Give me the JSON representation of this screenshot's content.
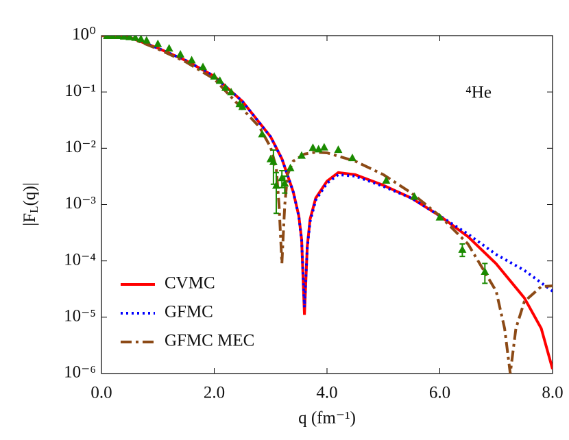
{
  "chart_data": {
    "type": "line",
    "ylog": true,
    "legend": "lower left",
    "annotation": "⁴He",
    "xlabel": "q (fm⁻¹)",
    "ylabel": [
      "|F",
      "L",
      "(q)|"
    ],
    "xlim": [
      0,
      8
    ],
    "ylim": [
      1e-06,
      1
    ],
    "xticks": [
      {
        "value": 0,
        "label": "0.0"
      },
      {
        "value": 2,
        "label": "2.0"
      },
      {
        "value": 4,
        "label": "4.0"
      },
      {
        "value": 6,
        "label": "6.0"
      },
      {
        "value": 8,
        "label": "8.0"
      }
    ],
    "yticks": [
      {
        "value": 1,
        "label": "10⁰"
      },
      {
        "value": 0.1,
        "label": "10⁻¹"
      },
      {
        "value": 0.01,
        "label": "10⁻²"
      },
      {
        "value": 0.001,
        "label": "10⁻³"
      },
      {
        "value": 0.0001,
        "label": "10⁻⁴"
      },
      {
        "value": 1e-05,
        "label": "10⁻⁵"
      },
      {
        "value": 1e-06,
        "label": "10⁻⁶"
      }
    ],
    "series": [
      {
        "name": "CVMC",
        "color": "#ff0000",
        "style": "solid",
        "x": [
          0,
          0.5,
          1.0,
          1.5,
          2.0,
          2.5,
          3.0,
          3.2,
          3.4,
          3.5,
          3.55,
          3.6,
          3.65,
          3.7,
          3.8,
          4.0,
          4.2,
          4.5,
          5.0,
          5.5,
          6.0,
          6.5,
          7.0,
          7.5,
          7.8,
          8.0
        ],
        "values": [
          1,
          0.93,
          0.6,
          0.36,
          0.19,
          0.068,
          0.016,
          0.0065,
          0.0017,
          0.00063,
          0.00024,
          1.1e-05,
          0.00018,
          0.00055,
          0.0013,
          0.0026,
          0.0037,
          0.0034,
          0.0022,
          0.0013,
          0.00063,
          0.00027,
          8.9e-05,
          2.2e-05,
          6.3e-06,
          1.2e-06
        ]
      },
      {
        "name": "GFMC",
        "color": "#0000ff",
        "style": "dotted",
        "x": [
          0,
          0.5,
          1.0,
          1.5,
          2.0,
          2.5,
          3.0,
          3.2,
          3.4,
          3.5,
          3.55,
          3.6,
          3.65,
          3.7,
          3.8,
          4.0,
          4.2,
          4.5,
          5.0,
          5.5,
          6.0,
          6.5,
          7.0,
          7.5,
          8.0
        ],
        "values": [
          1,
          0.93,
          0.6,
          0.36,
          0.19,
          0.068,
          0.016,
          0.0065,
          0.0017,
          0.00062,
          0.00023,
          1.5e-05,
          0.00017,
          0.0005,
          0.0012,
          0.0024,
          0.0034,
          0.0032,
          0.0021,
          0.0013,
          0.00063,
          0.0003,
          0.00013,
          6.8e-05,
          2.9e-05
        ]
      },
      {
        "name": "GFMC MEC",
        "color": "#8c4a16",
        "style": "dashdot",
        "x": [
          0,
          0.5,
          1.0,
          1.5,
          2.0,
          2.5,
          2.8,
          3.0,
          3.1,
          3.15,
          3.2,
          3.25,
          3.3,
          3.4,
          3.6,
          3.8,
          4.0,
          4.5,
          5.0,
          5.5,
          6.0,
          6.5,
          7.0,
          7.15,
          7.25,
          7.35,
          7.5,
          7.8,
          8.0
        ],
        "values": [
          1,
          0.92,
          0.58,
          0.34,
          0.17,
          0.05,
          0.024,
          0.0104,
          0.0045,
          0.00096,
          9e-05,
          0.00096,
          0.0034,
          0.0059,
          0.0079,
          0.0085,
          0.0083,
          0.0059,
          0.0034,
          0.0016,
          0.00063,
          0.0002,
          2.9e-05,
          6.3e-06,
          1e-06,
          6.3e-06,
          1.9e-05,
          3.5e-05,
          3.6e-05
        ]
      }
    ],
    "points": {
      "color": "#1a8a00",
      "x": [
        0.1,
        0.2,
        0.3,
        0.4,
        0.5,
        0.6,
        0.7,
        0.8,
        1.0,
        1.2,
        1.4,
        1.6,
        1.8,
        2.0,
        2.1,
        2.2,
        2.3,
        2.45,
        2.5,
        2.85,
        3.0,
        3.05,
        3.1,
        3.2,
        3.25,
        3.35,
        3.55,
        3.75,
        3.85,
        3.95,
        4.2,
        4.45,
        5.05,
        5.55,
        6.0,
        6.4,
        6.8
      ],
      "values": [
        1.0,
        1.0,
        1.0,
        0.98,
        0.96,
        0.93,
        0.88,
        0.83,
        0.72,
        0.6,
        0.47,
        0.37,
        0.28,
        0.19,
        0.16,
        0.12,
        0.1,
        0.062,
        0.055,
        0.018,
        0.0065,
        0.0058,
        0.0022,
        0.003,
        0.0024,
        0.0045,
        0.0075,
        0.0103,
        0.0097,
        0.0105,
        0.0095,
        0.0068,
        0.0027,
        0.0014,
        0.0006,
        0.00016,
        6.5e-05
      ],
      "errors": [
        null,
        null,
        null,
        null,
        null,
        null,
        null,
        null,
        null,
        null,
        null,
        null,
        null,
        null,
        null,
        null,
        null,
        null,
        null,
        null,
        null,
        0.0035,
        0.0015,
        0.001,
        0.0008,
        null,
        null,
        null,
        null,
        null,
        null,
        null,
        null,
        null,
        null,
        4e-05,
        2.5e-05
      ]
    }
  }
}
